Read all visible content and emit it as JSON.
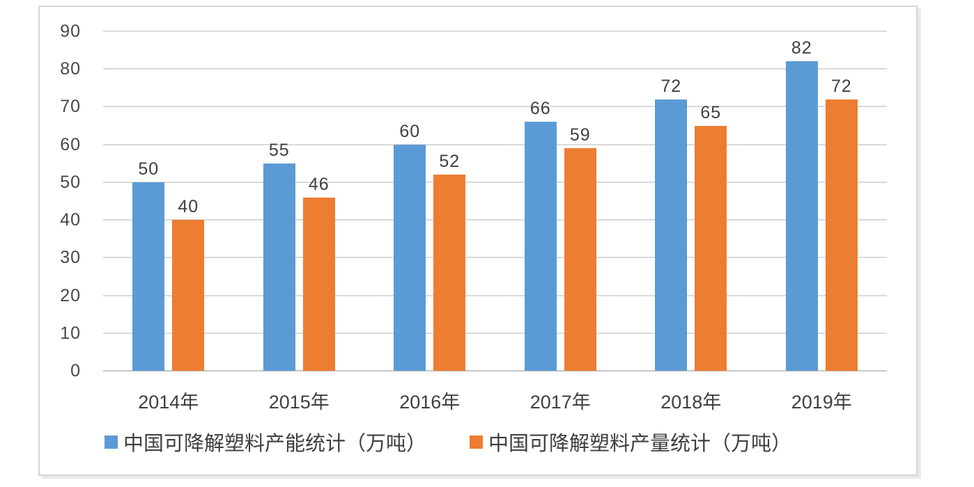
{
  "chart_data": {
    "type": "bar",
    "title": "",
    "categories": [
      "2014年",
      "2015年",
      "2016年",
      "2017年",
      "2018年",
      "2019年"
    ],
    "series": [
      {
        "name": "中国可降解塑料产能统计（万吨）",
        "color": "#5B9BD5",
        "values": [
          50,
          55,
          60,
          66,
          72,
          82
        ]
      },
      {
        "name": "中国可降解塑料产量统计（万吨）",
        "color": "#ED7D31",
        "values": [
          40,
          46,
          52,
          59,
          65,
          72
        ]
      }
    ],
    "xlabel": "",
    "ylabel": "",
    "ylim": [
      0,
      90
    ],
    "y_ticks": [
      90,
      80,
      70,
      60,
      50,
      40,
      30,
      20,
      10,
      0
    ],
    "grid": true,
    "data_labels": true,
    "legend_position": "bottom",
    "colors": {
      "gridline": "#dadada",
      "axis_line": "#c6c6c6",
      "text": "#3f3f3f",
      "frame_border": "#d6d6d6",
      "background": "#ffffff"
    }
  }
}
